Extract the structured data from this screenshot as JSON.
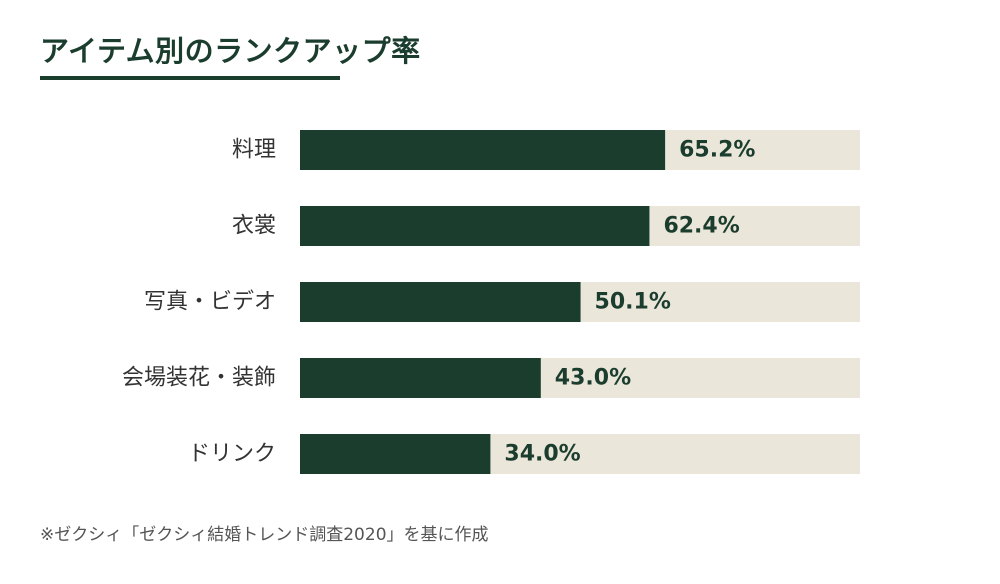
{
  "title": "アイテム別のランクアップ率",
  "source": "※ゼクシィ「ゼクシィ結婚トレンド調査2020」を基に作成",
  "colors": {
    "bar": "#1b3d2e",
    "track": "#ebe6da",
    "accent": "#1b3d2e"
  },
  "chart_data": {
    "type": "bar",
    "orientation": "horizontal",
    "title": "アイテム別のランクアップ率",
    "categories": [
      "料理",
      "衣裳",
      "写真・ビデオ",
      "会場装花・装飾",
      "ドリンク"
    ],
    "values": [
      65.2,
      62.4,
      50.1,
      43.0,
      34.0
    ],
    "value_labels": [
      "65.2%",
      "62.4%",
      "50.1%",
      "43.0%",
      "34.0%"
    ],
    "unit": "%",
    "xlim": [
      0,
      100
    ],
    "grid": false,
    "legend": "none"
  }
}
